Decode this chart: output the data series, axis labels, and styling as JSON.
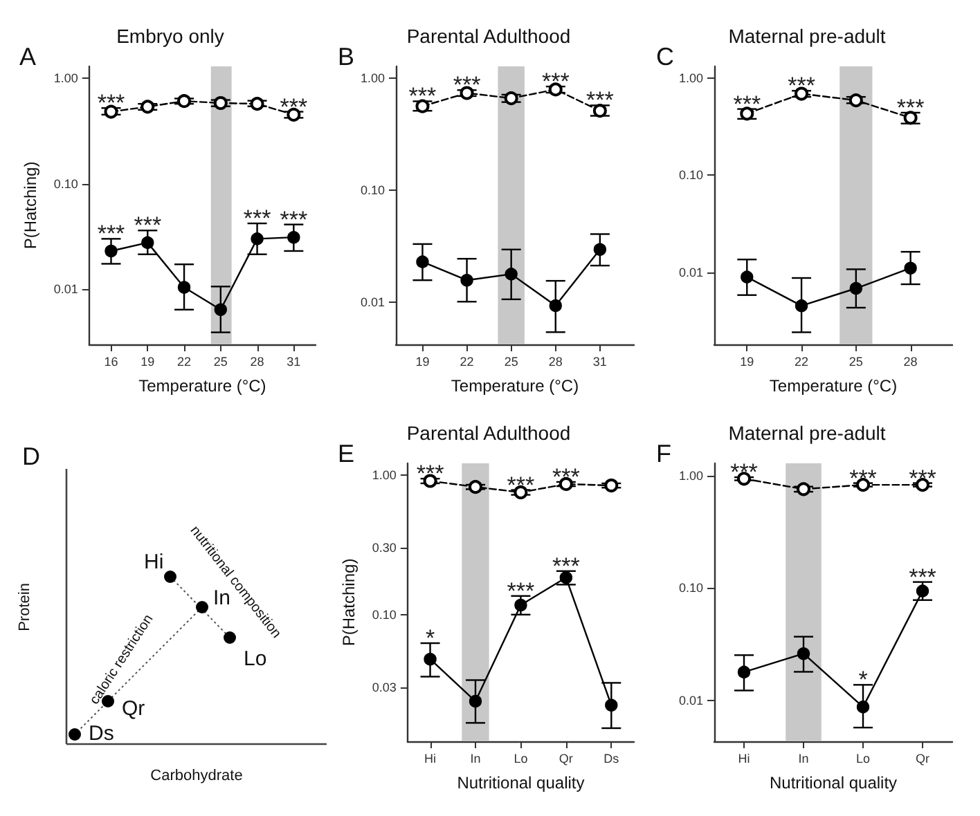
{
  "chart_data": [
    {
      "type": "line",
      "title": "Embryo only",
      "xlabel": "Temperature (°C)",
      "ylabel": "P(Hatching)",
      "x": [
        16,
        19,
        22,
        25,
        28,
        31
      ],
      "xlim": [
        14.2,
        32.8
      ],
      "xticks": [
        16,
        19,
        22,
        25,
        28,
        31
      ],
      "ylim": [
        0.003,
        1.29
      ],
      "yticks": [
        {
          "value": 0.01,
          "label": "0.01"
        },
        {
          "value": 0.1,
          "label": "0.10"
        },
        {
          "value": 1,
          "label": "1.00"
        }
      ],
      "log": "y",
      "marker": "circle",
      "bands": [
        {
          "axis": "x",
          "from": 24.2,
          "to": 25.9,
          "color": "#c8c8c8"
        }
      ],
      "series": [
        {
          "color": "#000000",
          "line_style": "dashed",
          "values": [
            0.48,
            0.535,
            0.605,
            0.58,
            0.57,
            0.45
          ],
          "errors": [
            [
              0.45,
              0.52
            ],
            [
              0.5,
              0.57
            ],
            [
              0.57,
              0.64
            ],
            [
              0.54,
              0.62
            ],
            [
              0.54,
              0.61
            ],
            [
              0.42,
              0.48
            ]
          ]
        },
        {
          "color": "#000000",
          "line_style": "solid",
          "values": [
            0.023,
            0.0276,
            0.0104,
            0.0064,
            0.03,
            0.031
          ],
          "errors": [
            [
              0.0174,
              0.03
            ],
            [
              0.0214,
              0.036
            ],
            [
              0.0064,
              0.0172
            ],
            [
              0.0039,
              0.0106
            ],
            [
              0.0214,
              0.042
            ],
            [
              0.023,
              0.041
            ]
          ]
        }
      ],
      "annotations": [
        "A",
        {
          "text": "***",
          "x": 16,
          "y": 0.48
        },
        {
          "text": "***",
          "x": 31,
          "y": 0.45
        },
        {
          "text": "***",
          "x": 16,
          "y": 0.023
        },
        {
          "text": "***",
          "x": 19,
          "y": 0.0276
        },
        {
          "text": "***",
          "x": 28,
          "y": 0.03
        },
        {
          "text": "***",
          "x": 31,
          "y": 0.031
        }
      ]
    },
    {
      "type": "line",
      "title": "Parental Adulthood",
      "xlabel": "Temperature (°C)",
      "x": [
        19,
        22,
        25,
        28,
        31
      ],
      "xlim": [
        17.2,
        33.3
      ],
      "xticks": [
        19,
        22,
        25,
        28,
        31
      ],
      "ylim": [
        0.0042,
        1.27
      ],
      "yticks": [
        {
          "value": 0.01,
          "label": "0.01"
        },
        {
          "value": 0.1,
          "label": "0.10"
        },
        {
          "value": 1,
          "label": "1.00"
        }
      ],
      "log": "y",
      "marker": "circle",
      "bands": [
        {
          "axis": "x",
          "from": 24.1,
          "to": 25.9,
          "color": "#c8c8c8"
        }
      ],
      "series": [
        {
          "color": "#000000",
          "line_style": "dashed",
          "values": [
            0.56,
            0.735,
            0.66,
            0.79,
            0.51
          ],
          "errors": [
            [
              0.51,
              0.62
            ],
            [
              0.69,
              0.78
            ],
            [
              0.61,
              0.71
            ],
            [
              0.74,
              0.84
            ],
            [
              0.46,
              0.57
            ]
          ]
        },
        {
          "color": "#000000",
          "line_style": "solid",
          "values": [
            0.0229,
            0.0157,
            0.0178,
            0.0093,
            0.0295
          ],
          "errors": [
            [
              0.0157,
              0.033
            ],
            [
              0.0101,
              0.0244
            ],
            [
              0.0106,
              0.0295
            ],
            [
              0.0054,
              0.0155
            ],
            [
              0.0212,
              0.0405
            ]
          ]
        }
      ],
      "annotations": [
        "B",
        {
          "text": "***",
          "x": 19,
          "y": 0.56
        },
        {
          "text": "***",
          "x": 22,
          "y": 0.735
        },
        {
          "text": "***",
          "x": 28,
          "y": 0.79
        },
        {
          "text": "***",
          "x": 31,
          "y": 0.51
        }
      ]
    },
    {
      "type": "line",
      "title": "Maternal pre-adult",
      "xlabel": "Temperature (°C)",
      "x": [
        19,
        22,
        25,
        28
      ],
      "xlim": [
        17.2,
        30.3
      ],
      "xticks": [
        19,
        22,
        25,
        28
      ],
      "ylim": [
        0.0018,
        1.32
      ],
      "yticks": [
        {
          "value": 0.01,
          "label": "0.01"
        },
        {
          "value": 0.1,
          "label": "0.10"
        },
        {
          "value": 1,
          "label": "1.00"
        }
      ],
      "log": "y",
      "marker": "circle",
      "bands": [
        {
          "axis": "x",
          "from": 24.1,
          "to": 25.9,
          "color": "#c8c8c8"
        }
      ],
      "series": [
        {
          "color": "#000000",
          "line_style": "dashed",
          "values": [
            0.43,
            0.69,
            0.59,
            0.39
          ],
          "errors": [
            [
              0.38,
              0.48
            ],
            [
              0.64,
              0.74
            ],
            [
              0.55,
              0.64
            ],
            [
              0.34,
              0.44
            ]
          ]
        },
        {
          "color": "#000000",
          "line_style": "solid",
          "values": [
            0.0089,
            0.0045,
            0.0068,
            0.011
          ],
          "errors": [
            [
              0.0058,
              0.0135
            ],
            [
              0.0024,
              0.0087
            ],
            [
              0.0043,
              0.0107
            ],
            [
              0.0075,
              0.0162
            ]
          ]
        }
      ],
      "annotations": [
        "C",
        {
          "text": "***",
          "x": 19,
          "y": 0.43
        },
        {
          "text": "***",
          "x": 22,
          "y": 0.69
        },
        {
          "text": "***",
          "x": 28,
          "y": 0.39
        }
      ]
    },
    {
      "type": "other",
      "xlabel": "Carbohydrate",
      "ylabel": "Protein",
      "annotations": [
        "D",
        "Hi",
        "In",
        "Lo",
        "Qr",
        "Ds",
        "caloric restriction",
        "nutritional composition"
      ]
    },
    {
      "type": "line",
      "title": "Parental Adulthood",
      "xlabel": "Nutritional quality",
      "ylabel": "P(Hatching)",
      "categories": [
        "Hi",
        "In",
        "Lo",
        "Qr",
        "Ds"
      ],
      "ylim": [
        0.0124,
        1.21
      ],
      "yticks": [
        {
          "value": 0.03,
          "label": "0.03"
        },
        {
          "value": 0.1,
          "label": "0.10"
        },
        {
          "value": 0.3,
          "label": "0.30"
        },
        {
          "value": 1,
          "label": "1.00"
        }
      ],
      "log": "y",
      "marker": "circle",
      "bands": [
        {
          "axis": "x",
          "from": "In",
          "to": "In",
          "color": "#c8c8c8"
        }
      ],
      "series": [
        {
          "color": "#000000",
          "line_style": "dashed",
          "values": [
            0.905,
            0.82,
            0.75,
            0.86,
            0.84
          ],
          "errors": [
            [
              0.87,
              0.94
            ],
            [
              0.79,
              0.85
            ],
            [
              0.72,
              0.78
            ],
            [
              0.83,
              0.89
            ],
            [
              0.81,
              0.87
            ]
          ]
        },
        {
          "color": "#000000",
          "line_style": "solid",
          "values": [
            0.048,
            0.024,
            0.117,
            0.184,
            0.0225
          ],
          "errors": [
            [
              0.036,
              0.0625
            ],
            [
              0.0168,
              0.034
            ],
            [
              0.1,
              0.136
            ],
            [
              0.164,
              0.205
            ],
            [
              0.0154,
              0.0325
            ]
          ]
        }
      ],
      "annotations": [
        "E",
        {
          "text": "***",
          "x": "Hi",
          "y": 0.905
        },
        {
          "text": "***",
          "x": "Lo",
          "y": 0.75
        },
        {
          "text": "***",
          "x": "Qr",
          "y": 0.86
        },
        {
          "text": "*",
          "x": "Hi",
          "y": 0.048
        },
        {
          "text": "***",
          "x": "Lo",
          "y": 0.117
        },
        {
          "text": "***",
          "x": "Qr",
          "y": 0.184
        }
      ]
    },
    {
      "type": "line",
      "title": "Maternal pre-adult",
      "xlabel": "Nutritional quality",
      "categories": [
        "Hi",
        "In",
        "Lo",
        "Qr"
      ],
      "ylim": [
        0.0043,
        1.29
      ],
      "yticks": [
        {
          "value": 0.01,
          "label": "0.01"
        },
        {
          "value": 0.1,
          "label": "0.10"
        },
        {
          "value": 1,
          "label": "1.00"
        }
      ],
      "log": "y",
      "marker": "circle",
      "bands": [
        {
          "axis": "x",
          "from": "In",
          "to": "In",
          "color": "#c8c8c8"
        }
      ],
      "series": [
        {
          "color": "#000000",
          "line_style": "dashed",
          "values": [
            0.94,
            0.76,
            0.83,
            0.83
          ],
          "errors": [
            [
              0.91,
              0.97
            ],
            [
              0.72,
              0.8
            ],
            [
              0.8,
              0.86
            ],
            [
              0.8,
              0.86
            ]
          ]
        },
        {
          "color": "#000000",
          "line_style": "solid",
          "values": [
            0.0178,
            0.026,
            0.0087,
            0.094
          ],
          "errors": [
            [
              0.0122,
              0.0252
            ],
            [
              0.0179,
              0.0368
            ],
            [
              0.0057,
              0.0137
            ],
            [
              0.078,
              0.113
            ]
          ]
        }
      ],
      "annotations": [
        "F",
        {
          "text": "***",
          "x": "Hi",
          "y": 0.94
        },
        {
          "text": "***",
          "x": "Lo",
          "y": 0.83
        },
        {
          "text": "***",
          "x": "Qr",
          "y": 0.83
        },
        {
          "text": "*",
          "x": "Lo",
          "y": 0.0087
        },
        {
          "text": "***",
          "x": "Qr",
          "y": 0.094
        }
      ]
    }
  ]
}
